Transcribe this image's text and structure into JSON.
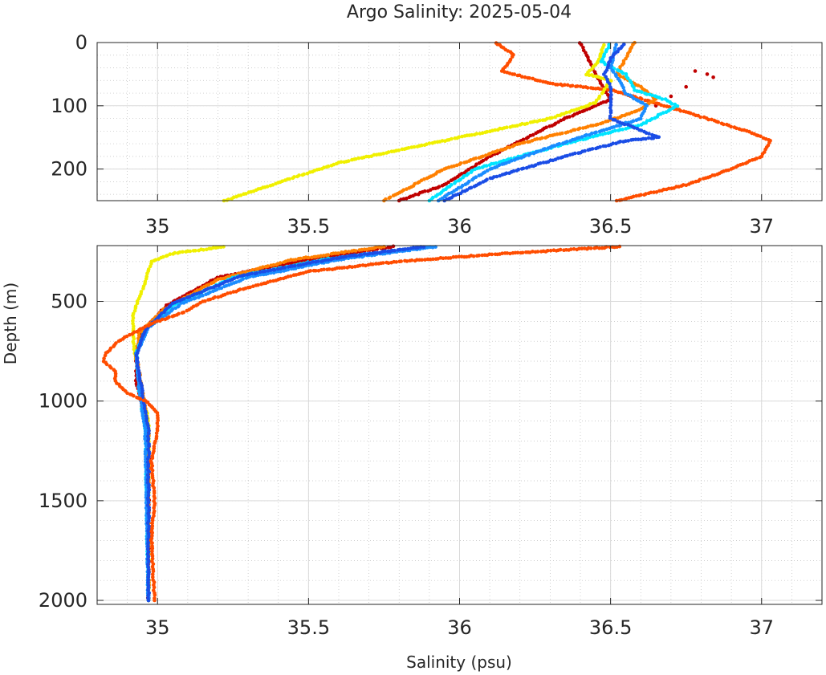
{
  "title": "Argo Salinity: 2025-05-04",
  "xlabel": "Salinity (psu)",
  "ylabel": "Depth (m)",
  "colors": {
    "axis": "#262626",
    "grid_major": "#d9d9d9",
    "grid_minor": "#bdbdbd",
    "dark_red": "#c00000",
    "orange_red": "#ff4d00",
    "orange": "#ff8000",
    "yellow": "#f0f000",
    "cyan": "#00e5ff",
    "sky_blue": "#1a8cff",
    "blue": "#1a4de6"
  },
  "chart_data": [
    {
      "type": "scatter",
      "panel": "upper",
      "xlim": [
        34.8,
        37.2
      ],
      "ylim": [
        0,
        250
      ],
      "y_reversed": true,
      "grid": true,
      "minor_grid": true,
      "x_ticks": [
        "35",
        "35.5",
        "36",
        "36.5",
        "37"
      ],
      "y_ticks": [
        "0",
        "100",
        "200"
      ],
      "series": [
        {
          "color_key": "dark_red",
          "points": [
            [
              36.4,
              0
            ],
            [
              36.42,
              20
            ],
            [
              36.45,
              50
            ],
            [
              36.5,
              90
            ],
            [
              36.35,
              120
            ],
            [
              36.1,
              180
            ],
            [
              35.95,
              225
            ],
            [
              35.8,
              250
            ]
          ],
          "scatter": [
            [
              36.78,
              45
            ],
            [
              36.82,
              50
            ],
            [
              36.84,
              55
            ],
            [
              36.75,
              70
            ],
            [
              36.7,
              85
            ],
            [
              36.65,
              100
            ]
          ]
        },
        {
          "color_key": "orange_red",
          "points": [
            [
              36.12,
              0
            ],
            [
              36.18,
              20
            ],
            [
              36.14,
              45
            ],
            [
              36.3,
              65
            ],
            [
              36.5,
              75
            ],
            [
              36.75,
              110
            ],
            [
              36.85,
              125
            ],
            [
              36.95,
              140
            ],
            [
              37.03,
              155
            ],
            [
              37.0,
              180
            ],
            [
              36.9,
              200
            ],
            [
              36.75,
              225
            ],
            [
              36.52,
              250
            ]
          ]
        },
        {
          "color_key": "orange",
          "points": [
            [
              36.58,
              0
            ],
            [
              36.55,
              25
            ],
            [
              36.52,
              50
            ],
            [
              36.6,
              70
            ],
            [
              36.65,
              90
            ],
            [
              36.58,
              110
            ],
            [
              36.45,
              130
            ],
            [
              36.2,
              160
            ],
            [
              35.95,
              200
            ],
            [
              35.75,
              250
            ]
          ]
        },
        {
          "color_key": "yellow",
          "points": [
            [
              36.48,
              0
            ],
            [
              36.46,
              30
            ],
            [
              36.42,
              50
            ],
            [
              36.5,
              60
            ],
            [
              36.45,
              95
            ],
            [
              36.3,
              120
            ],
            [
              36.0,
              150
            ],
            [
              35.6,
              190
            ],
            [
              35.22,
              250
            ]
          ]
        },
        {
          "color_key": "cyan",
          "points": [
            [
              36.5,
              0
            ],
            [
              36.47,
              30
            ],
            [
              36.55,
              50
            ],
            [
              36.58,
              75
            ],
            [
              36.68,
              90
            ],
            [
              36.72,
              100
            ],
            [
              36.6,
              130
            ],
            [
              36.35,
              160
            ],
            [
              36.05,
              200
            ],
            [
              35.9,
              250
            ]
          ]
        },
        {
          "color_key": "sky_blue",
          "points": [
            [
              36.52,
              0
            ],
            [
              36.5,
              40
            ],
            [
              36.53,
              60
            ],
            [
              36.55,
              80
            ],
            [
              36.62,
              100
            ],
            [
              36.6,
              120
            ],
            [
              36.3,
              165
            ],
            [
              36.1,
              200
            ],
            [
              35.93,
              250
            ]
          ]
        },
        {
          "color_key": "blue",
          "points": [
            [
              36.55,
              0
            ],
            [
              36.5,
              25
            ],
            [
              36.48,
              50
            ],
            [
              36.5,
              70
            ],
            [
              36.5,
              90
            ],
            [
              36.5,
              120
            ],
            [
              36.66,
              150
            ],
            [
              36.55,
              155
            ],
            [
              36.35,
              180
            ],
            [
              36.1,
              215
            ],
            [
              35.95,
              250
            ]
          ]
        }
      ]
    },
    {
      "type": "scatter",
      "panel": "lower",
      "xlim": [
        34.8,
        37.2
      ],
      "ylim": [
        220,
        2020
      ],
      "y_reversed": true,
      "grid": true,
      "minor_grid": true,
      "x_ticks": [
        "35",
        "35.5",
        "36",
        "36.5",
        "37"
      ],
      "y_ticks": [
        "500",
        "1000",
        "1500",
        "2000"
      ],
      "series": [
        {
          "color_key": "yellow",
          "points": [
            [
              35.22,
              225
            ],
            [
              35.05,
              260
            ],
            [
              34.98,
              300
            ],
            [
              34.96,
              400
            ],
            [
              34.92,
              560
            ],
            [
              34.92,
              700
            ],
            [
              34.94,
              900
            ],
            [
              34.97,
              1100
            ],
            [
              34.97,
              2000
            ]
          ]
        },
        {
          "color_key": "dark_red",
          "points": [
            [
              35.78,
              225
            ],
            [
              35.5,
              290
            ],
            [
              35.2,
              380
            ],
            [
              35.03,
              520
            ],
            [
              34.95,
              650
            ],
            [
              34.93,
              750
            ],
            [
              34.93,
              900
            ],
            [
              34.95,
              1050
            ],
            [
              34.97,
              1200
            ],
            [
              34.97,
              2000
            ]
          ]
        },
        {
          "color_key": "orange",
          "points": [
            [
              35.75,
              225
            ],
            [
              35.45,
              290
            ],
            [
              35.2,
              390
            ],
            [
              35.02,
              540
            ],
            [
              34.94,
              660
            ],
            [
              34.93,
              780
            ],
            [
              34.95,
              950
            ],
            [
              34.97,
              1150
            ],
            [
              34.97,
              2000
            ]
          ]
        },
        {
          "color_key": "cyan",
          "points": [
            [
              35.9,
              225
            ],
            [
              35.55,
              290
            ],
            [
              35.25,
              380
            ],
            [
              35.05,
              520
            ],
            [
              34.96,
              640
            ],
            [
              34.93,
              760
            ],
            [
              34.94,
              950
            ],
            [
              34.96,
              1150
            ],
            [
              34.97,
              2000
            ]
          ]
        },
        {
          "color_key": "sky_blue",
          "points": [
            [
              35.92,
              225
            ],
            [
              35.6,
              290
            ],
            [
              35.3,
              380
            ],
            [
              35.08,
              510
            ],
            [
              34.97,
              630
            ],
            [
              34.93,
              760
            ],
            [
              34.94,
              950
            ],
            [
              34.96,
              1150
            ],
            [
              34.97,
              2000
            ]
          ]
        },
        {
          "color_key": "blue",
          "points": [
            [
              35.88,
              225
            ],
            [
              35.6,
              280
            ],
            [
              35.28,
              370
            ],
            [
              35.05,
              510
            ],
            [
              34.96,
              640
            ],
            [
              34.93,
              770
            ],
            [
              34.95,
              960
            ],
            [
              34.97,
              1150
            ],
            [
              34.97,
              2000
            ]
          ]
        },
        {
          "color_key": "orange_red",
          "points": [
            [
              36.53,
              225
            ],
            [
              36.1,
              265
            ],
            [
              35.8,
              300
            ],
            [
              35.5,
              350
            ],
            [
              35.3,
              430
            ],
            [
              35.15,
              500
            ],
            [
              35.08,
              560
            ],
            [
              35.0,
              600
            ],
            [
              34.93,
              650
            ],
            [
              34.87,
              700
            ],
            [
              34.83,
              760
            ],
            [
              34.82,
              800
            ],
            [
              34.86,
              850
            ],
            [
              34.86,
              900
            ],
            [
              34.9,
              960
            ],
            [
              34.96,
              1000
            ],
            [
              35.0,
              1060
            ],
            [
              35.0,
              1150
            ],
            [
              34.98,
              1300
            ],
            [
              34.99,
              1500
            ],
            [
              34.98,
              1700
            ],
            [
              34.99,
              2000
            ]
          ]
        }
      ]
    }
  ]
}
